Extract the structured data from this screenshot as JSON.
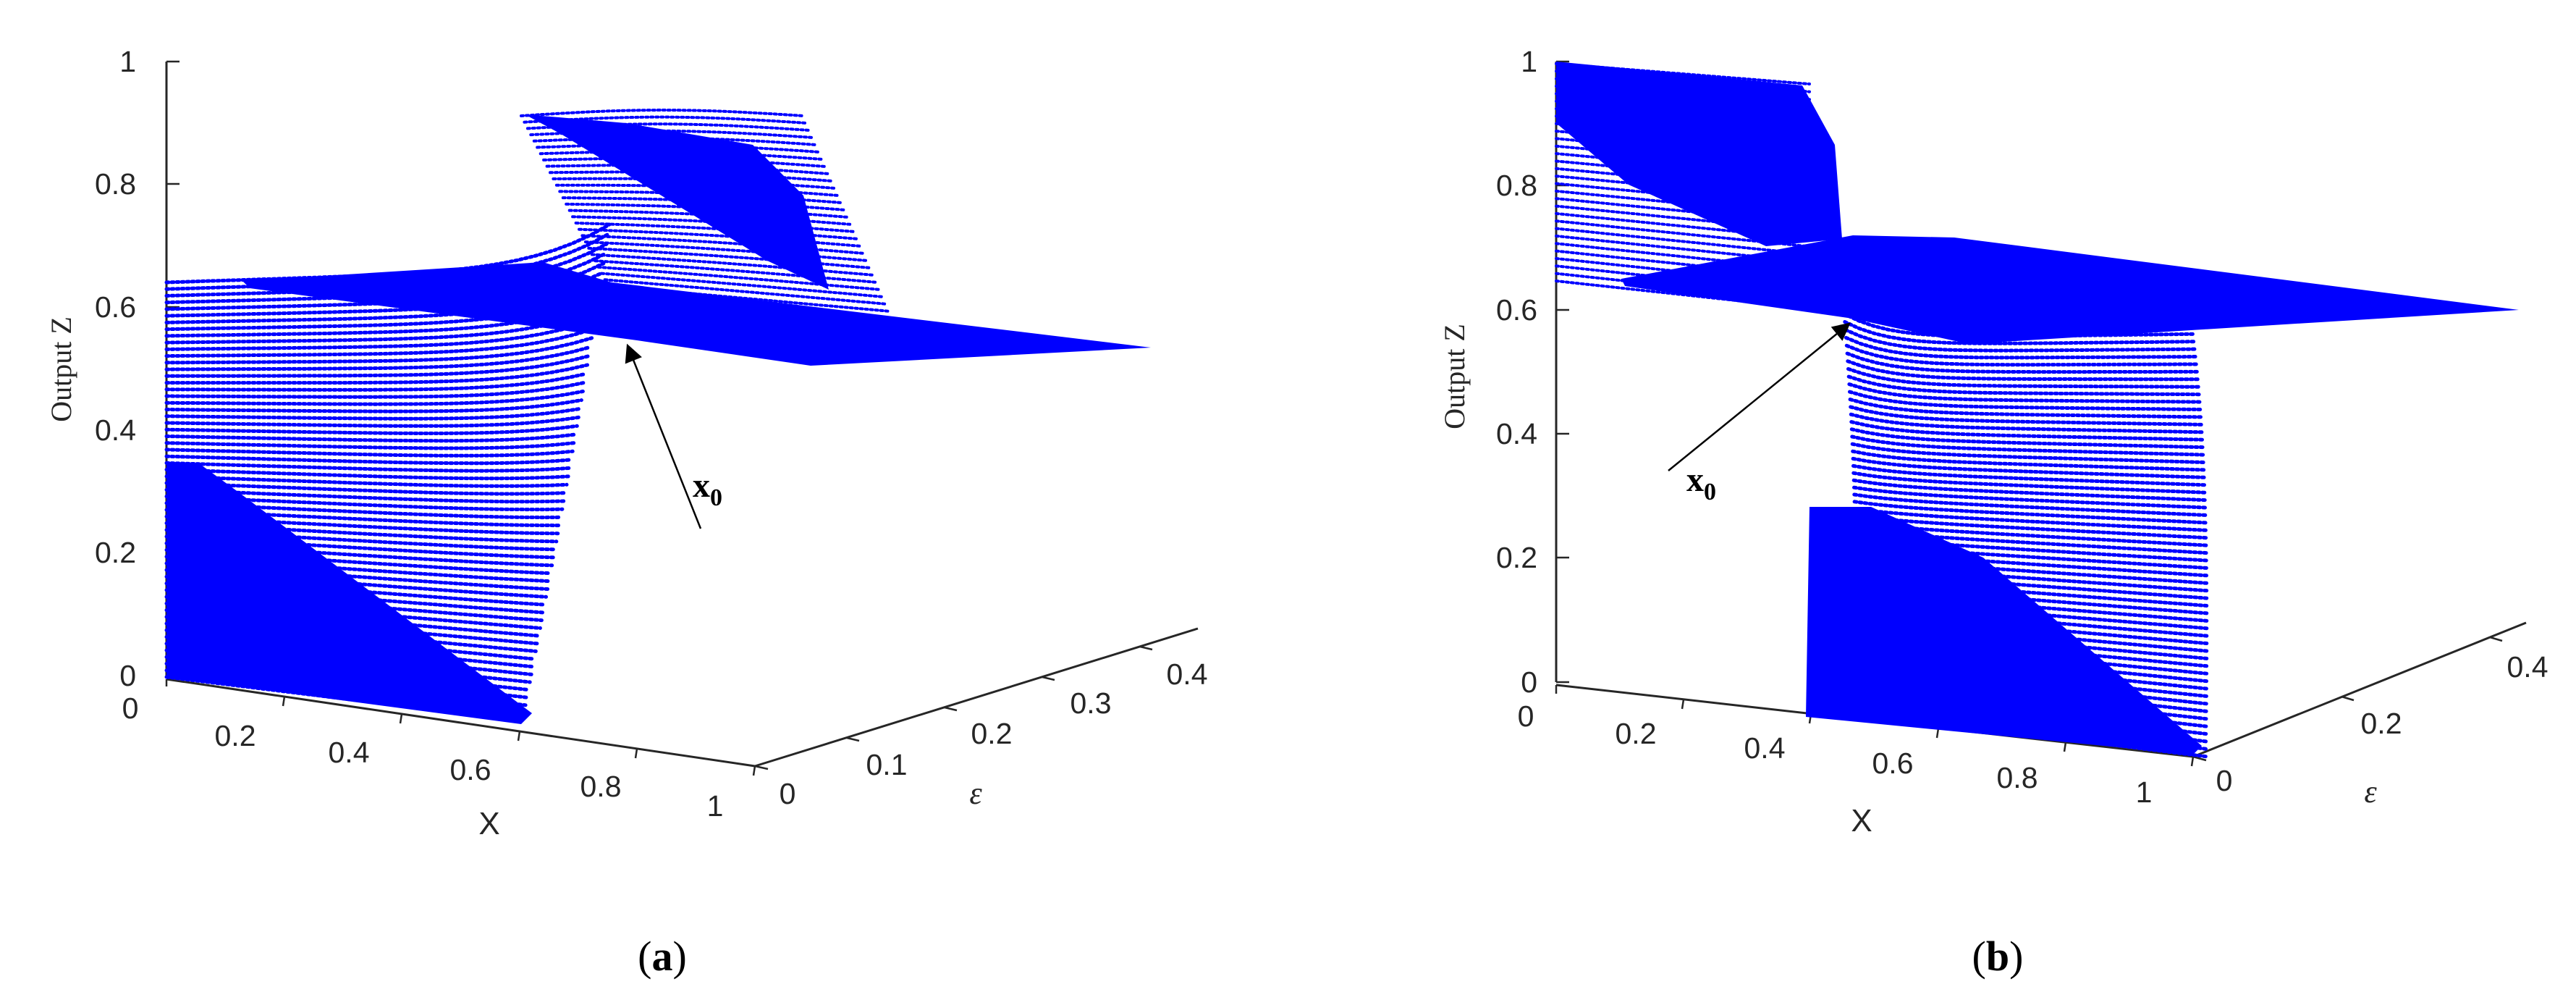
{
  "chart_data": [
    {
      "type": "scatter",
      "subtype": "3d-surface-points",
      "panel": "a",
      "caption": "(a)",
      "xlabel": "X",
      "ylabel": "ε",
      "zlabel": "Output Z",
      "annotation": {
        "text": "x",
        "subscript": "0"
      },
      "x_ticks": [
        "0",
        "0.2",
        "0.4",
        "0.6",
        "0.8",
        "1"
      ],
      "y_ticks": [
        "0",
        "0.1",
        "0.2",
        "0.3",
        "0.4"
      ],
      "z_ticks": [
        "0",
        "0.2",
        "0.4",
        "0.6",
        "0.8",
        "1"
      ],
      "xlim": [
        0,
        1
      ],
      "ylim": [
        0,
        0.45
      ],
      "zlim": [
        0,
        1
      ],
      "series": [
        {
          "color": "#0000ff",
          "description_points": [
            {
              "x": 0.0,
              "z_low": 0.0,
              "z_high": 0.62
            },
            {
              "x": 0.7,
              "z_low": 0.0,
              "z_high": 0.62
            },
            {
              "x": 0.72,
              "z_plateau": 0.6
            },
            {
              "x": 0.8,
              "z_upper_sheet": 0.87
            }
          ]
        }
      ]
    },
    {
      "type": "scatter",
      "subtype": "3d-surface-points",
      "panel": "b",
      "caption": "(b)",
      "xlabel": "X",
      "ylabel": "ε",
      "zlabel": "Output Z",
      "annotation": {
        "text": "x",
        "subscript": "0"
      },
      "x_ticks": [
        "0",
        "0.2",
        "0.4",
        "0.6",
        "0.8",
        "1"
      ],
      "y_ticks": [
        "0",
        "0.2",
        "0.4"
      ],
      "z_ticks": [
        "0",
        "0.2",
        "0.4",
        "0.6",
        "0.8",
        "1"
      ],
      "xlim": [
        0,
        1
      ],
      "ylim": [
        0,
        0.45
      ],
      "zlim": [
        0,
        1
      ],
      "series": [
        {
          "color": "#0000ff",
          "description_points": [
            {
              "x": 0.0,
              "z_upper_sheet": 1.0
            },
            {
              "x": 0.5,
              "z_plateau": 0.63
            },
            {
              "x": 0.5,
              "z_low": 0.0
            },
            {
              "x": 1.0,
              "z_low": 0.0
            }
          ]
        }
      ]
    }
  ]
}
